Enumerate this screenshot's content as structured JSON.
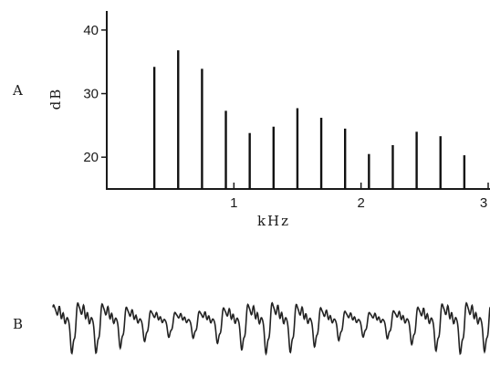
{
  "chart_data": [
    {
      "type": "bar",
      "panel_label": "A",
      "xlabel": "kHz",
      "ylabel": "dB",
      "xlim": [
        0,
        3
      ],
      "ylim": [
        15,
        43
      ],
      "xticks": [
        1,
        2,
        3
      ],
      "yticks": [
        20,
        30,
        40
      ],
      "grid": false,
      "x": [
        0.2,
        0.4,
        0.6,
        0.8,
        1.0,
        1.2,
        1.4,
        1.6,
        1.8,
        2.0,
        2.2,
        2.4,
        2.6,
        2.8
      ],
      "values": [
        34.2,
        36.8,
        33.9,
        27.3,
        23.8,
        24.8,
        27.7,
        26.2,
        24.5,
        20.5,
        21.9,
        24.0,
        23.3,
        20.3
      ]
    },
    {
      "type": "line",
      "panel_label": "B",
      "description_of_content": "",
      "axes_visible": false,
      "fundamental_period_cycles": 18
    }
  ]
}
